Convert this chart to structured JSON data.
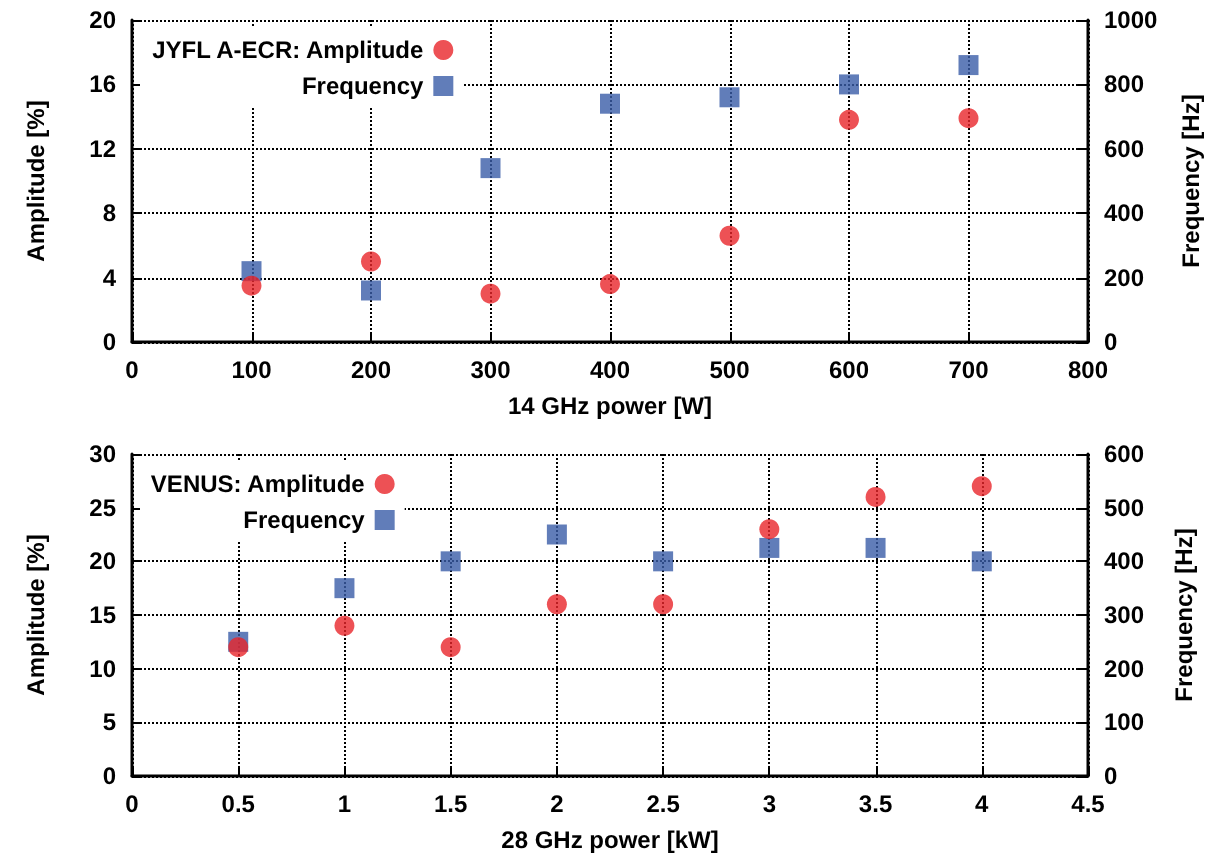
{
  "chart_data": [
    {
      "type": "scatter",
      "xlabel": "14 GHz power [W]",
      "ylabel": "Amplitude [%]",
      "y2label": "Frequency [Hz]",
      "x": [
        100,
        200,
        300,
        400,
        500,
        600,
        700
      ],
      "xlim": [
        0,
        800
      ],
      "xticks": [
        0,
        100,
        200,
        300,
        400,
        500,
        600,
        700,
        800
      ],
      "ylim": [
        0,
        20
      ],
      "yticks": [
        0,
        4,
        8,
        12,
        16,
        20
      ],
      "y2lim": [
        0,
        1000
      ],
      "y2ticks": [
        0,
        200,
        400,
        600,
        800,
        1000
      ],
      "grid": true,
      "legend": "top left",
      "series": [
        {
          "name": "JYFL A-ECR: Amplitude",
          "color": "#e8262b",
          "marker": "circle",
          "values": [
            3.5,
            5.0,
            3.0,
            3.6,
            6.6,
            13.8,
            13.9
          ]
        },
        {
          "name": "Frequency",
          "color": "#3a5da8",
          "marker": "square",
          "axis": "y2",
          "values": [
            220,
            160,
            540,
            740,
            760,
            800,
            860
          ]
        }
      ]
    },
    {
      "type": "scatter",
      "xlabel": "28 GHz power [kW]",
      "ylabel": "Amplitude [%]",
      "y2label": "Frequency [Hz]",
      "x": [
        0.5,
        1,
        1.5,
        2,
        2.5,
        3,
        3.5,
        4
      ],
      "xlim": [
        0,
        4.5
      ],
      "xticks": [
        0,
        0.5,
        1,
        1.5,
        2,
        2.5,
        3,
        3.5,
        4,
        4.5
      ],
      "ylim": [
        0,
        30
      ],
      "yticks": [
        0,
        5,
        10,
        15,
        20,
        25,
        30
      ],
      "y2lim": [
        0,
        600
      ],
      "y2ticks": [
        0,
        100,
        200,
        300,
        400,
        500,
        600
      ],
      "grid": true,
      "legend": "top left",
      "series": [
        {
          "name": "VENUS: Amplitude",
          "color": "#e8262b",
          "marker": "circle",
          "values": [
            12,
            14,
            12,
            16,
            16,
            23,
            26,
            27
          ]
        },
        {
          "name": "Frequency",
          "color": "#3a5da8",
          "marker": "square",
          "axis": "y2",
          "values": [
            250,
            350,
            400,
            450,
            400,
            425,
            425,
            400
          ]
        }
      ]
    }
  ]
}
